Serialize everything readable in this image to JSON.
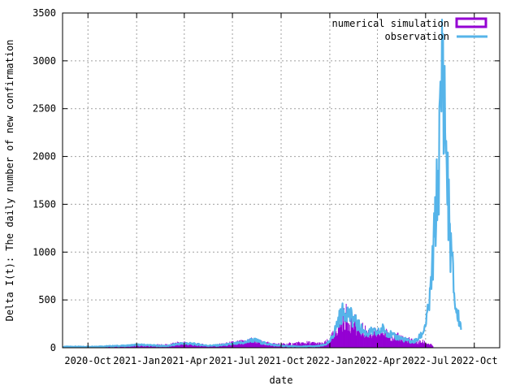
{
  "chart_data": {
    "type": "bar",
    "xlabel": "date",
    "ylabel": "Delta I(t): The daily number of new confirmation",
    "x_ticks": [
      "2020-Oct",
      "2021-Jan",
      "2021-Apr",
      "2021-Jul",
      "2021-Oct",
      "2022-Jan",
      "2022-Apr",
      "2022-Jul",
      "2022-Oct"
    ],
    "y_ticks": [
      "0",
      "500",
      "1000",
      "1500",
      "2000",
      "2500",
      "3000",
      "3500"
    ],
    "xlim": [
      "2020-08-14",
      "2022-11-18"
    ],
    "ylim": [
      0,
      3500
    ],
    "grid": true,
    "legend_position": "top-right",
    "series": [
      {
        "name": "numerical simulation",
        "style": "impulses",
        "color": "#9400d3",
        "points": [
          [
            "2020-08-15",
            5
          ],
          [
            "2020-09-01",
            8
          ],
          [
            "2020-10-01",
            12
          ],
          [
            "2020-11-01",
            15
          ],
          [
            "2020-12-01",
            18
          ],
          [
            "2021-01-01",
            20
          ],
          [
            "2021-02-01",
            25
          ],
          [
            "2021-03-01",
            30
          ],
          [
            "2021-03-20",
            45
          ],
          [
            "2021-04-05",
            50
          ],
          [
            "2021-04-25",
            35
          ],
          [
            "2021-05-15",
            25
          ],
          [
            "2021-06-05",
            30
          ],
          [
            "2021-06-25",
            45
          ],
          [
            "2021-07-10",
            55
          ],
          [
            "2021-07-25",
            60
          ],
          [
            "2021-08-05",
            80
          ],
          [
            "2021-08-15",
            70
          ],
          [
            "2021-08-28",
            50
          ],
          [
            "2021-09-15",
            40
          ],
          [
            "2021-10-01",
            35
          ],
          [
            "2021-10-20",
            40
          ],
          [
            "2021-11-05",
            45
          ],
          [
            "2021-11-20",
            50
          ],
          [
            "2021-12-05",
            45
          ],
          [
            "2021-12-20",
            40
          ],
          [
            "2022-01-01",
            80
          ],
          [
            "2022-01-10",
            150
          ],
          [
            "2022-01-18",
            230
          ],
          [
            "2022-01-25",
            290
          ],
          [
            "2022-02-01",
            320
          ],
          [
            "2022-02-08",
            280
          ],
          [
            "2022-02-15",
            250
          ],
          [
            "2022-02-22",
            220
          ],
          [
            "2022-03-01",
            190
          ],
          [
            "2022-03-08",
            170
          ],
          [
            "2022-03-15",
            155
          ],
          [
            "2022-03-22",
            150
          ],
          [
            "2022-04-01",
            145
          ],
          [
            "2022-04-10",
            160
          ],
          [
            "2022-04-20",
            140
          ],
          [
            "2022-05-01",
            115
          ],
          [
            "2022-05-15",
            105
          ],
          [
            "2022-05-25",
            90
          ],
          [
            "2022-06-05",
            70
          ],
          [
            "2022-06-15",
            55
          ],
          [
            "2022-06-25",
            60
          ],
          [
            "2022-07-05",
            45
          ],
          [
            "2022-07-15",
            20
          ]
        ]
      },
      {
        "name": "observation",
        "style": "lines",
        "color": "#56b4e9",
        "points": [
          [
            "2020-08-15",
            10
          ],
          [
            "2020-09-01",
            12
          ],
          [
            "2020-09-20",
            10
          ],
          [
            "2020-10-10",
            12
          ],
          [
            "2020-11-01",
            15
          ],
          [
            "2020-11-20",
            18
          ],
          [
            "2020-12-10",
            20
          ],
          [
            "2021-01-01",
            30
          ],
          [
            "2021-01-20",
            28
          ],
          [
            "2021-02-10",
            20
          ],
          [
            "2021-03-01",
            18
          ],
          [
            "2021-03-20",
            40
          ],
          [
            "2021-04-05",
            45
          ],
          [
            "2021-04-25",
            35
          ],
          [
            "2021-05-15",
            22
          ],
          [
            "2021-06-05",
            25
          ],
          [
            "2021-06-25",
            35
          ],
          [
            "2021-07-10",
            45
          ],
          [
            "2021-07-25",
            55
          ],
          [
            "2021-08-05",
            80
          ],
          [
            "2021-08-15",
            75
          ],
          [
            "2021-08-28",
            50
          ],
          [
            "2021-09-15",
            30
          ],
          [
            "2021-10-01",
            20
          ],
          [
            "2021-10-20",
            15
          ],
          [
            "2021-11-05",
            12
          ],
          [
            "2021-11-20",
            15
          ],
          [
            "2021-12-05",
            15
          ],
          [
            "2021-12-20",
            25
          ],
          [
            "2022-01-01",
            60
          ],
          [
            "2022-01-10",
            170
          ],
          [
            "2022-01-18",
            300
          ],
          [
            "2022-01-25",
            360
          ],
          [
            "2022-02-01",
            400
          ],
          [
            "2022-02-08",
            330
          ],
          [
            "2022-02-15",
            300
          ],
          [
            "2022-02-22",
            240
          ],
          [
            "2022-03-01",
            200
          ],
          [
            "2022-03-08",
            160
          ],
          [
            "2022-03-15",
            150
          ],
          [
            "2022-03-22",
            170
          ],
          [
            "2022-04-01",
            150
          ],
          [
            "2022-04-10",
            200
          ],
          [
            "2022-04-20",
            160
          ],
          [
            "2022-05-01",
            120
          ],
          [
            "2022-05-15",
            100
          ],
          [
            "2022-05-25",
            80
          ],
          [
            "2022-06-05",
            60
          ],
          [
            "2022-06-15",
            80
          ],
          [
            "2022-06-25",
            150
          ],
          [
            "2022-07-01",
            250
          ],
          [
            "2022-07-05",
            350
          ],
          [
            "2022-07-09",
            500
          ],
          [
            "2022-07-12",
            700
          ],
          [
            "2022-07-16",
            1000
          ],
          [
            "2022-07-20",
            1400
          ],
          [
            "2022-07-24",
            1700
          ],
          [
            "2022-07-28",
            2200
          ],
          [
            "2022-07-31",
            2600
          ],
          [
            "2022-08-02",
            3200
          ],
          [
            "2022-08-04",
            2800
          ],
          [
            "2022-08-07",
            2400
          ],
          [
            "2022-08-10",
            1900
          ],
          [
            "2022-08-13",
            1500
          ],
          [
            "2022-08-17",
            1100
          ],
          [
            "2022-08-21",
            800
          ],
          [
            "2022-08-25",
            500
          ],
          [
            "2022-08-29",
            350
          ],
          [
            "2022-09-02",
            300
          ],
          [
            "2022-09-06",
            220
          ]
        ]
      }
    ]
  }
}
